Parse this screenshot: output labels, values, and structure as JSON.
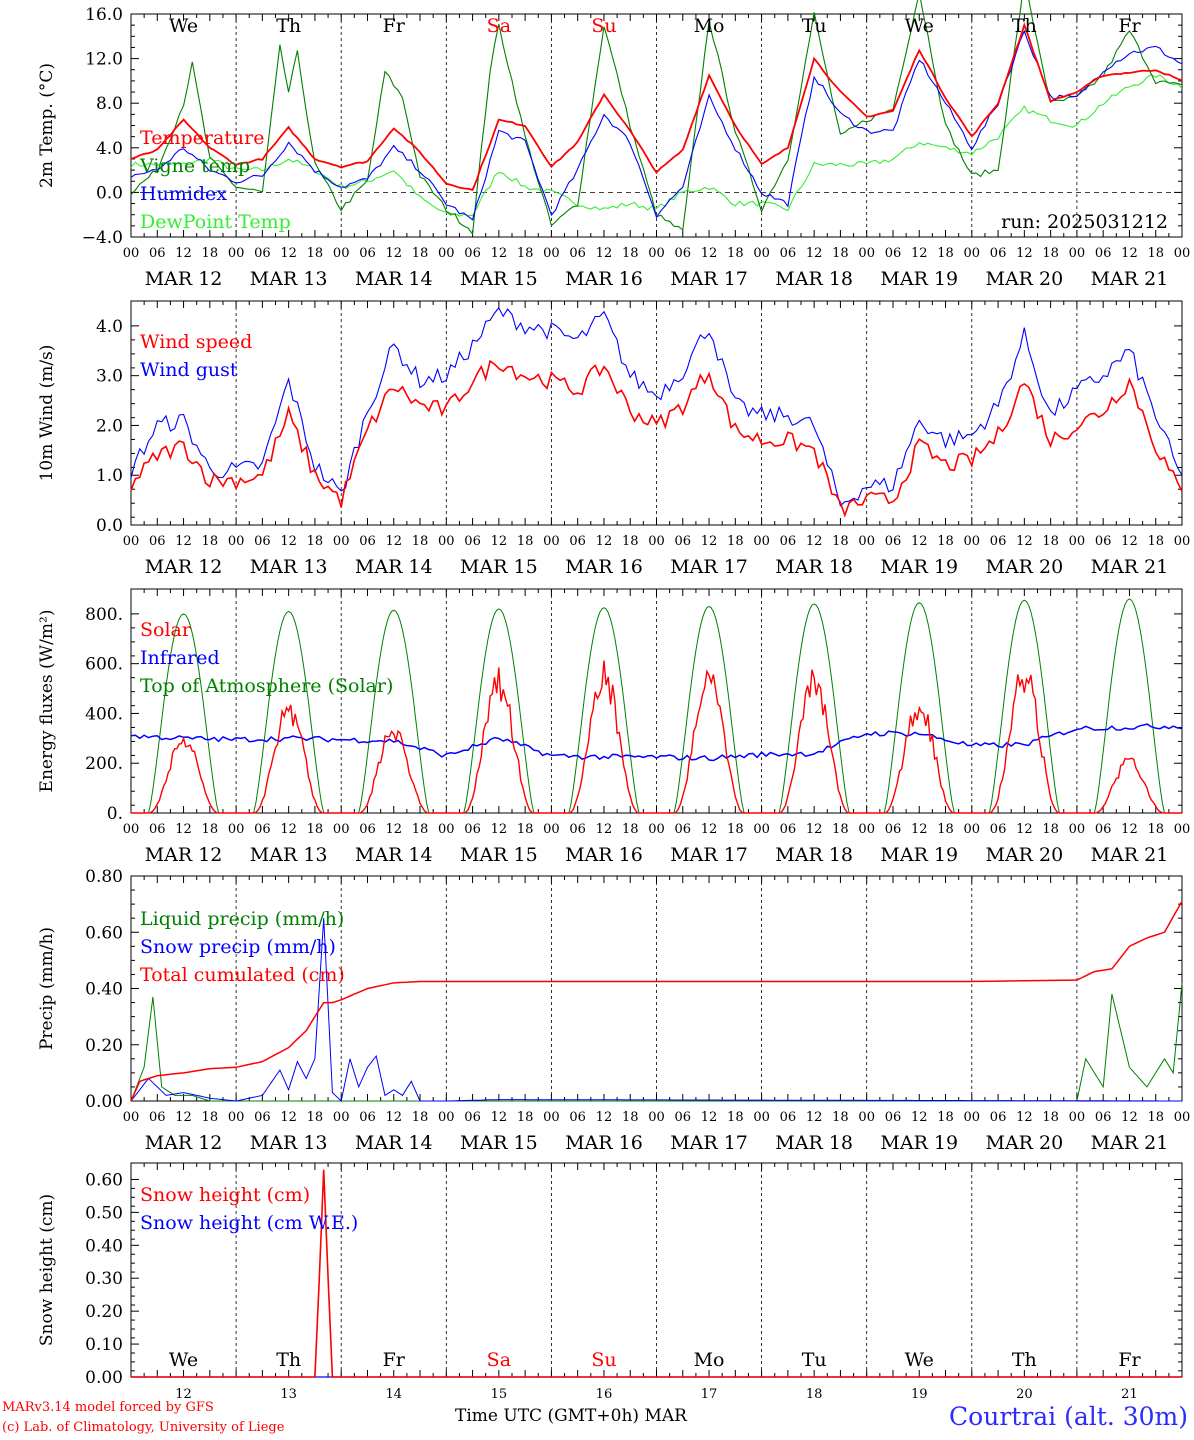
{
  "footer": {
    "credit_line1": "MARv3.14 model forced by GFS",
    "credit_line2": "(c) Lab. of Climatology, University of Liege",
    "time_axis_label": "Time UTC (GMT+0h) MAR",
    "site": "Courtrai (alt. 30m)"
  },
  "days": [
    "We",
    "Th",
    "Fr",
    "Sa",
    "Su",
    "Mo",
    "Tu",
    "We",
    "Th",
    "Fr"
  ],
  "weekend_days": [
    "Sa",
    "Su"
  ],
  "dates": [
    "MAR 12",
    "MAR 13",
    "MAR 14",
    "MAR 15",
    "MAR 16",
    "MAR 17",
    "MAR 18",
    "MAR 19",
    "MAR 20",
    "MAR 21"
  ],
  "day_numbers": [
    "12",
    "13",
    "14",
    "15",
    "16",
    "17",
    "18",
    "19",
    "20",
    "21"
  ],
  "hour_ticks": [
    "00",
    "06",
    "12",
    "18"
  ],
  "colors": {
    "red": "#ff0000",
    "blue": "#0000ff",
    "green": "#008000",
    "lightgreen": "#33ee33",
    "site": "#2b2bff"
  },
  "chart_data": [
    {
      "type": "line",
      "ylabel": "2m Temp. (°C)",
      "ylim": [
        -4,
        16
      ],
      "yticks": [
        "16.0",
        "12.0",
        "8.0",
        "4.0",
        "0.0",
        "−4.0"
      ],
      "annotation": "run: 2025031212",
      "x_unit": "hours since MAR 12 00 UTC",
      "series": [
        {
          "name": "Temperature",
          "color": "red",
          "x": [
            0,
            6,
            12,
            18,
            24,
            30,
            36,
            42,
            48,
            54,
            60,
            66,
            72,
            78,
            84,
            90,
            96,
            102,
            108,
            114,
            120,
            126,
            132,
            138,
            144,
            150,
            156,
            162,
            168,
            174,
            180,
            186,
            192,
            198,
            204,
            210,
            216,
            222,
            234,
            240
          ],
          "y": [
            3.0,
            3.8,
            6.5,
            4.0,
            2.5,
            3.0,
            5.8,
            3.0,
            2.3,
            2.8,
            5.8,
            3.6,
            0.8,
            0.2,
            6.5,
            6.0,
            2.3,
            4.5,
            8.8,
            5.5,
            1.8,
            3.8,
            10.5,
            6.0,
            2.5,
            4.0,
            12.0,
            9.0,
            6.8,
            7.3,
            12.8,
            8.5,
            5.0,
            8.0,
            15.0,
            8.2,
            9.0,
            10.5,
            11.0,
            10.0
          ]
        },
        {
          "name": "Vigne temp",
          "color": "green",
          "x": [
            0,
            6,
            12,
            14,
            18,
            24,
            30,
            34,
            36,
            38,
            42,
            48,
            54,
            58,
            62,
            66,
            72,
            78,
            82,
            84,
            90,
            96,
            102,
            108,
            114,
            120,
            126,
            132,
            138,
            144,
            150,
            156,
            162,
            168,
            174,
            180,
            186,
            192,
            198,
            204,
            210,
            216,
            222,
            228,
            234,
            240
          ],
          "y": [
            0.0,
            2.0,
            8.0,
            11.5,
            3.0,
            0.5,
            0.0,
            13.0,
            9.0,
            12.5,
            2.5,
            -1.5,
            1.0,
            10.8,
            8.5,
            1.5,
            -1.5,
            -3.5,
            11.0,
            15.0,
            5.0,
            -3.0,
            -1.0,
            15.0,
            6.0,
            -2.0,
            -3.5,
            15.5,
            5.5,
            -1.5,
            3.0,
            16.0,
            5.0,
            6.5,
            7.5,
            18.0,
            6.0,
            1.5,
            2.0,
            19.0,
            8.0,
            8.5,
            10.5,
            14.5,
            10.0,
            9.5
          ]
        },
        {
          "name": "Humidex",
          "color": "blue",
          "x": [
            0,
            6,
            12,
            18,
            24,
            30,
            36,
            42,
            48,
            54,
            60,
            66,
            72,
            78,
            84,
            90,
            96,
            102,
            108,
            114,
            120,
            126,
            132,
            138,
            144,
            150,
            156,
            162,
            168,
            174,
            180,
            186,
            192,
            198,
            204,
            210,
            216,
            222,
            228,
            234,
            240
          ],
          "y": [
            1.5,
            2.0,
            4.0,
            2.0,
            1.0,
            1.5,
            4.5,
            2.0,
            0.5,
            1.2,
            4.0,
            2.0,
            -1.0,
            -2.5,
            5.5,
            4.5,
            -2.0,
            2.0,
            7.0,
            4.5,
            -2.0,
            0.5,
            8.5,
            4.0,
            0.0,
            -1.0,
            10.5,
            7.0,
            5.5,
            5.5,
            12.0,
            8.0,
            4.0,
            8.0,
            14.5,
            8.5,
            8.5,
            11.0,
            12.5,
            13.0,
            11.5
          ]
        },
        {
          "name": "DewPoint Temp",
          "color": "lightgreen",
          "x": [
            0,
            6,
            12,
            18,
            24,
            30,
            36,
            42,
            48,
            54,
            60,
            66,
            72,
            78,
            84,
            90,
            96,
            102,
            108,
            114,
            120,
            126,
            132,
            138,
            144,
            150,
            156,
            162,
            168,
            174,
            180,
            186,
            192,
            198,
            204,
            210,
            216,
            222,
            228,
            234,
            240
          ],
          "y": [
            2.5,
            2.5,
            2.5,
            3.0,
            2.0,
            2.0,
            3.0,
            2.0,
            0.5,
            1.0,
            2.0,
            -0.5,
            -2.0,
            -2.0,
            2.0,
            0.5,
            0.0,
            -1.0,
            -1.5,
            -1.0,
            -1.5,
            0.0,
            0.5,
            -1.0,
            -1.0,
            -1.5,
            2.5,
            2.5,
            2.5,
            3.0,
            4.5,
            4.0,
            3.5,
            5.0,
            7.5,
            6.5,
            6.0,
            8.0,
            9.5,
            10.5,
            9.5
          ]
        }
      ]
    },
    {
      "type": "line",
      "ylabel": "10m Wind (m/s)",
      "ylim": [
        0,
        4.5
      ],
      "yticks": [
        "4.0",
        "3.0",
        "2.0",
        "1.0",
        "0.0"
      ],
      "series": [
        {
          "name": "Wind speed",
          "color": "red",
          "x": [
            0,
            6,
            12,
            18,
            24,
            30,
            36,
            42,
            48,
            54,
            60,
            66,
            72,
            78,
            84,
            90,
            96,
            102,
            108,
            114,
            120,
            126,
            132,
            138,
            144,
            150,
            156,
            162,
            168,
            174,
            180,
            186,
            192,
            198,
            204,
            210,
            216,
            222,
            228,
            234,
            240
          ],
          "y": [
            0.8,
            1.4,
            1.6,
            0.9,
            0.9,
            1.0,
            2.2,
            1.0,
            0.5,
            1.9,
            2.8,
            2.4,
            2.3,
            2.9,
            3.3,
            3.0,
            2.9,
            2.7,
            3.2,
            2.3,
            2.0,
            2.4,
            3.1,
            1.9,
            1.7,
            1.7,
            1.5,
            0.3,
            0.5,
            0.5,
            1.6,
            1.2,
            1.3,
            1.8,
            2.9,
            1.7,
            2.0,
            2.3,
            2.9,
            1.6,
            0.6
          ]
        },
        {
          "name": "Wind gust",
          "color": "blue",
          "x": [
            0,
            6,
            12,
            18,
            24,
            30,
            36,
            42,
            48,
            54,
            60,
            66,
            72,
            78,
            84,
            90,
            96,
            102,
            108,
            114,
            120,
            126,
            132,
            138,
            144,
            150,
            156,
            162,
            168,
            174,
            180,
            186,
            192,
            198,
            204,
            210,
            216,
            222,
            228,
            234,
            240
          ],
          "y": [
            1.1,
            2.0,
            2.1,
            1.1,
            1.1,
            1.2,
            2.9,
            1.2,
            0.6,
            2.3,
            3.6,
            2.9,
            3.0,
            3.6,
            4.3,
            4.0,
            3.9,
            3.7,
            4.2,
            3.0,
            2.6,
            3.1,
            4.0,
            2.4,
            2.2,
            2.2,
            2.0,
            0.4,
            0.8,
            0.8,
            2.1,
            1.7,
            1.8,
            2.4,
            3.8,
            2.2,
            2.7,
            3.0,
            3.5,
            2.2,
            0.9
          ]
        }
      ]
    },
    {
      "type": "line",
      "ylabel": "Energy fluxes (W/m²)",
      "ylim": [
        0,
        900
      ],
      "yticks": [
        "800.",
        "600.",
        "400.",
        "200.",
        "0."
      ],
      "series": [
        {
          "name": "Solar",
          "color": "red",
          "peaks": [
            340,
            480,
            380,
            600,
            640,
            640,
            620,
            500,
            630,
            240
          ]
        },
        {
          "name": "Infrared",
          "color": "blue",
          "x": [
            0,
            12,
            24,
            36,
            48,
            60,
            72,
            84,
            96,
            108,
            120,
            132,
            144,
            156,
            168,
            180,
            192,
            204,
            216,
            228,
            240
          ],
          "y": [
            310,
            300,
            295,
            300,
            295,
            290,
            230,
            300,
            230,
            225,
            225,
            220,
            235,
            240,
            320,
            320,
            270,
            275,
            340,
            345,
            350
          ]
        },
        {
          "name": "Top of Atmosphere (Solar)",
          "color": "green",
          "peaks": [
            800,
            810,
            815,
            820,
            825,
            830,
            840,
            845,
            855,
            860
          ]
        }
      ]
    },
    {
      "type": "line",
      "ylabel": "Precip (mm/h)",
      "ylim": [
        0,
        0.8
      ],
      "yticks": [
        "0.80",
        "0.60",
        "0.40",
        "0.20",
        "0.00"
      ],
      "series": [
        {
          "name": "Liquid precip (mm/h)",
          "color": "green",
          "x": [
            0,
            3,
            5,
            7,
            10,
            14,
            18,
            24,
            30,
            36,
            42,
            48,
            216,
            218,
            222,
            224,
            228,
            232,
            236,
            238,
            240
          ],
          "y": [
            0,
            0.12,
            0.37,
            0.05,
            0.02,
            0.02,
            0.0,
            0.0,
            0.0,
            0.0,
            0.0,
            0.0,
            0.0,
            0.15,
            0.05,
            0.38,
            0.12,
            0.05,
            0.15,
            0.1,
            0.42
          ]
        },
        {
          "name": "Snow precip (mm/h)",
          "color": "blue",
          "x": [
            0,
            4,
            8,
            12,
            18,
            24,
            30,
            34,
            36,
            38,
            40,
            42,
            44,
            46,
            48,
            50,
            52,
            54,
            56,
            58,
            60,
            62,
            64,
            66,
            70,
            72,
            84,
            240
          ],
          "y": [
            0,
            0.08,
            0.02,
            0.03,
            0.01,
            0.0,
            0.02,
            0.11,
            0.04,
            0.14,
            0.08,
            0.15,
            0.65,
            0.03,
            0.0,
            0.15,
            0.05,
            0.12,
            0.16,
            0.02,
            0.04,
            0.02,
            0.07,
            0.0,
            0.0,
            0.0,
            0.005,
            0.0
          ]
        },
        {
          "name": "Total cumulated (cm)",
          "color": "red",
          "x": [
            0,
            2,
            6,
            12,
            18,
            24,
            30,
            36,
            40,
            42,
            44,
            46,
            48,
            54,
            60,
            66,
            72,
            96,
            144,
            192,
            216,
            220,
            224,
            228,
            232,
            236,
            240
          ],
          "y": [
            0,
            0.07,
            0.09,
            0.1,
            0.115,
            0.12,
            0.14,
            0.19,
            0.25,
            0.3,
            0.35,
            0.35,
            0.36,
            0.4,
            0.42,
            0.425,
            0.425,
            0.425,
            0.425,
            0.425,
            0.43,
            0.46,
            0.47,
            0.55,
            0.58,
            0.6,
            0.71
          ]
        }
      ]
    },
    {
      "type": "line",
      "ylabel": "Snow height (cm)",
      "ylim": [
        0,
        0.65
      ],
      "yticks": [
        "0.60",
        "0.50",
        "0.40",
        "0.30",
        "0.20",
        "0.10",
        "0.00"
      ],
      "series": [
        {
          "name": "Snow height (cm)",
          "color": "red",
          "x": [
            0,
            42,
            43,
            44,
            45,
            46,
            240
          ],
          "y": [
            0,
            0,
            0.3,
            0.63,
            0.3,
            0,
            0
          ]
        },
        {
          "name": "Snow height (cm W.E.)",
          "color": "blue",
          "x": [
            0,
            240
          ],
          "y": [
            0,
            0
          ]
        }
      ]
    }
  ]
}
